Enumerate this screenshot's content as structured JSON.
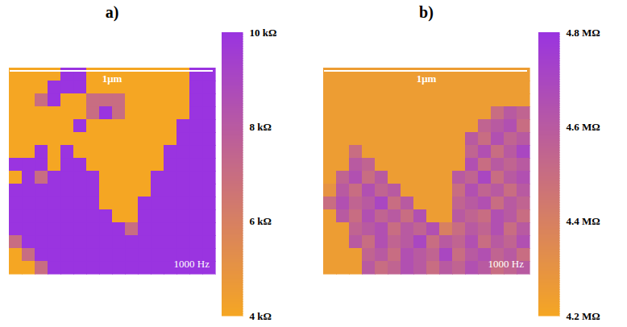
{
  "chart_data": [
    {
      "type": "heatmap",
      "title": "a)",
      "tick_labels": false,
      "annotations": [
        "1μm",
        "1000 Hz"
      ],
      "cells": [
        [
          4,
          4,
          4,
          4,
          10,
          10,
          4,
          4,
          4,
          4,
          4,
          4,
          4,
          4,
          10,
          10
        ],
        [
          4,
          4,
          4,
          10,
          10,
          10,
          4,
          4,
          4,
          4,
          4,
          4,
          4,
          4,
          10,
          10
        ],
        [
          4,
          4,
          7,
          10,
          4,
          4,
          7,
          7,
          7,
          4,
          4,
          4,
          4,
          4,
          10,
          10
        ],
        [
          4,
          4,
          4,
          4,
          4,
          4,
          7,
          10,
          7,
          4,
          4,
          4,
          4,
          4,
          10,
          10
        ],
        [
          4,
          4,
          4,
          4,
          4,
          10,
          4,
          4,
          4,
          4,
          4,
          4,
          4,
          10,
          10,
          10
        ],
        [
          4,
          4,
          4,
          4,
          4,
          4,
          4,
          4,
          4,
          4,
          4,
          4,
          4,
          10,
          10,
          10
        ],
        [
          4,
          4,
          10,
          4,
          10,
          4,
          4,
          4,
          4,
          4,
          4,
          4,
          10,
          10,
          10,
          10
        ],
        [
          10,
          10,
          10,
          4,
          10,
          10,
          4,
          4,
          4,
          4,
          4,
          4,
          10,
          10,
          10,
          10
        ],
        [
          4,
          10,
          7,
          10,
          10,
          10,
          10,
          4,
          4,
          4,
          4,
          10,
          10,
          10,
          10,
          10
        ],
        [
          10,
          10,
          10,
          10,
          10,
          10,
          10,
          4,
          4,
          4,
          4,
          10,
          10,
          10,
          10,
          10
        ],
        [
          10,
          10,
          10,
          10,
          10,
          10,
          10,
          4,
          4,
          4,
          10,
          10,
          10,
          10,
          10,
          10
        ],
        [
          10,
          10,
          10,
          10,
          10,
          10,
          10,
          10,
          4,
          4,
          10,
          10,
          10,
          10,
          10,
          10
        ],
        [
          10,
          10,
          10,
          10,
          10,
          10,
          10,
          10,
          10,
          7,
          10,
          10,
          10,
          10,
          10,
          10
        ],
        [
          7,
          10,
          10,
          10,
          10,
          10,
          10,
          10,
          10,
          10,
          10,
          10,
          10,
          10,
          10,
          10
        ],
        [
          4,
          7,
          10,
          10,
          10,
          10,
          10,
          10,
          10,
          10,
          10,
          10,
          10,
          10,
          10,
          10
        ],
        [
          4,
          4,
          7,
          10,
          10,
          10,
          10,
          10,
          10,
          10,
          10,
          10,
          10,
          10,
          10,
          10
        ]
      ],
      "colorbar": {
        "range": [
          4,
          10
        ],
        "colors": [
          "#f5a623",
          "#9a34e0"
        ],
        "ticks": [
          {
            "value": 10,
            "label": "10 kΩ"
          },
          {
            "value": 8,
            "label": "8 kΩ"
          },
          {
            "value": 6,
            "label": "6 kΩ"
          },
          {
            "value": 4,
            "label": "4 kΩ"
          }
        ]
      }
    },
    {
      "type": "heatmap",
      "title": "b)",
      "tick_labels": false,
      "annotations": [
        "1μm",
        "1000 Hz"
      ],
      "cells": [
        [
          4.25,
          4.25,
          4.25,
          4.25,
          4.25,
          4.25,
          4.25,
          4.25,
          4.25,
          4.25,
          4.25,
          4.25,
          4.25,
          4.25,
          4.25,
          4.25
        ],
        [
          4.25,
          4.25,
          4.25,
          4.25,
          4.25,
          4.25,
          4.25,
          4.25,
          4.25,
          4.25,
          4.25,
          4.25,
          4.25,
          4.25,
          4.25,
          4.25
        ],
        [
          4.25,
          4.25,
          4.25,
          4.25,
          4.25,
          4.25,
          4.25,
          4.25,
          4.25,
          4.25,
          4.25,
          4.25,
          4.25,
          4.25,
          4.25,
          4.25
        ],
        [
          4.25,
          4.25,
          4.25,
          4.25,
          4.25,
          4.25,
          4.25,
          4.25,
          4.25,
          4.25,
          4.25,
          4.25,
          4.25,
          4.5,
          4.6,
          4.55
        ],
        [
          4.25,
          4.25,
          4.25,
          4.25,
          4.25,
          4.25,
          4.25,
          4.25,
          4.25,
          4.25,
          4.25,
          4.25,
          4.55,
          4.6,
          4.65,
          4.5
        ],
        [
          4.25,
          4.25,
          4.25,
          4.25,
          4.25,
          4.25,
          4.25,
          4.25,
          4.25,
          4.25,
          4.25,
          4.6,
          4.5,
          4.65,
          4.55,
          4.6
        ],
        [
          4.25,
          4.25,
          4.5,
          4.25,
          4.25,
          4.25,
          4.25,
          4.25,
          4.25,
          4.25,
          4.25,
          4.55,
          4.65,
          4.5,
          4.6,
          4.7
        ],
        [
          4.25,
          4.25,
          4.6,
          4.55,
          4.25,
          4.25,
          4.25,
          4.25,
          4.25,
          4.25,
          4.25,
          4.65,
          4.5,
          4.6,
          4.55,
          4.6
        ],
        [
          4.25,
          4.55,
          4.65,
          4.5,
          4.6,
          4.25,
          4.25,
          4.25,
          4.25,
          4.25,
          4.6,
          4.55,
          4.7,
          4.5,
          4.6,
          4.65
        ],
        [
          4.3,
          4.6,
          4.5,
          4.65,
          4.55,
          4.6,
          4.25,
          4.25,
          4.25,
          4.25,
          4.5,
          4.65,
          4.55,
          4.6,
          4.5,
          4.6
        ],
        [
          4.5,
          4.65,
          4.55,
          4.6,
          4.7,
          4.5,
          4.6,
          4.25,
          4.25,
          4.25,
          4.55,
          4.6,
          4.65,
          4.5,
          4.6,
          4.55
        ],
        [
          4.25,
          4.6,
          4.5,
          4.65,
          4.55,
          4.6,
          4.5,
          4.65,
          4.25,
          4.25,
          4.6,
          4.55,
          4.5,
          4.65,
          4.6,
          4.5
        ],
        [
          4.25,
          4.25,
          4.55,
          4.6,
          4.65,
          4.5,
          4.6,
          4.55,
          4.65,
          4.4,
          4.5,
          4.6,
          4.55,
          4.65,
          4.5,
          4.6
        ],
        [
          4.25,
          4.25,
          4.6,
          4.5,
          4.65,
          4.55,
          4.6,
          4.7,
          4.5,
          4.6,
          4.55,
          4.65,
          4.5,
          4.6,
          4.55,
          4.65
        ],
        [
          4.25,
          4.25,
          4.25,
          4.55,
          4.6,
          4.5,
          4.65,
          4.6,
          4.55,
          4.7,
          4.5,
          4.6,
          4.65,
          4.55,
          4.6,
          4.5
        ],
        [
          4.25,
          4.25,
          4.25,
          4.6,
          4.5,
          4.55,
          4.65,
          4.6,
          4.5,
          4.6,
          4.55,
          4.65,
          4.6,
          4.5,
          4.55,
          4.6
        ]
      ],
      "colorbar": {
        "range": [
          4.2,
          4.8
        ],
        "colors": [
          "#f5a623",
          "#9a34e0"
        ],
        "ticks": [
          {
            "value": 4.8,
            "label": "4.8 MΩ"
          },
          {
            "value": 4.6,
            "label": "4.6 MΩ"
          },
          {
            "value": 4.4,
            "label": "4.4 MΩ"
          },
          {
            "value": 4.2,
            "label": "4.2 MΩ"
          }
        ]
      }
    }
  ]
}
